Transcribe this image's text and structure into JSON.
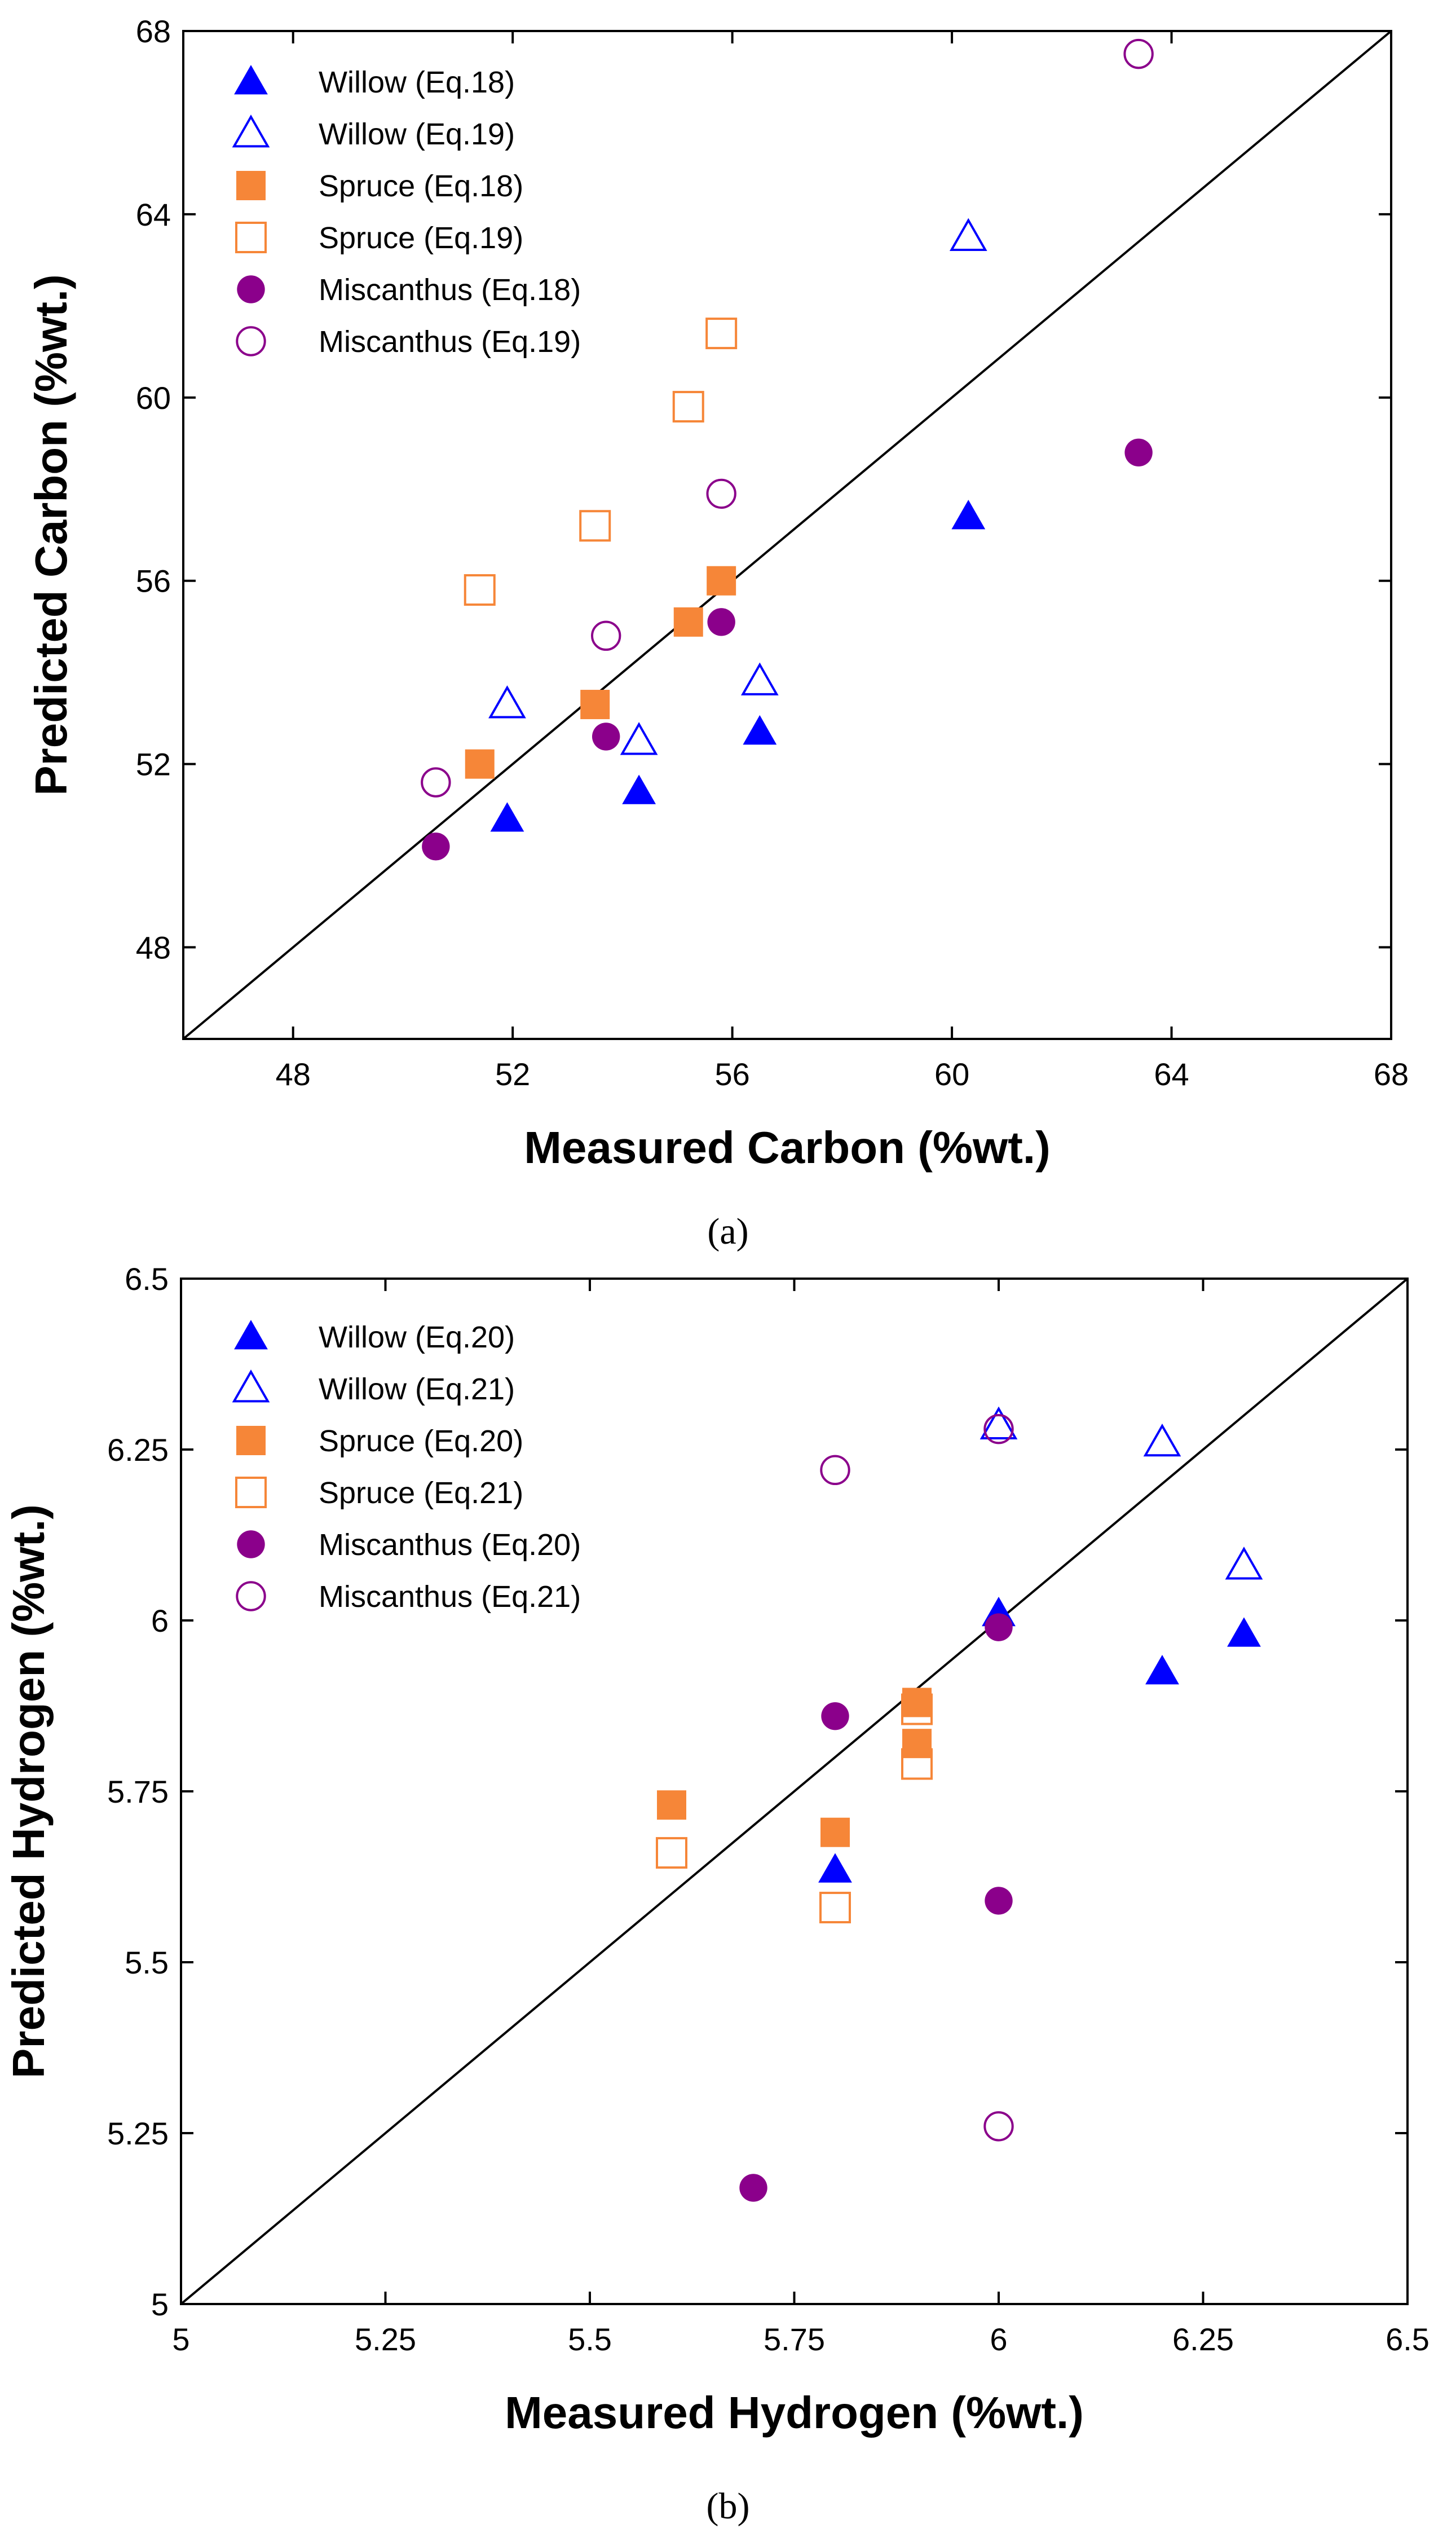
{
  "chart_data": [
    {
      "type": "scatter",
      "panel_label": "(a)",
      "xlabel": "Measured Carbon (%wt.)",
      "ylabel": "Predicted Carbon (%wt.)",
      "xlim": [
        46,
        68
      ],
      "ylim": [
        46,
        68
      ],
      "xticks": [
        48,
        52,
        56,
        60,
        64,
        68
      ],
      "yticks": [
        48,
        52,
        56,
        60,
        64,
        68
      ],
      "xtick_labels": [
        "48",
        "52",
        "56",
        "60",
        "64",
        "68"
      ],
      "ytick_labels": [
        "48",
        "52",
        "56",
        "60",
        "64",
        "68"
      ],
      "diagonal": true,
      "legend_position": "top-left",
      "series": [
        {
          "name": "Willow (Eq.18)",
          "marker": "triangle",
          "filled": true,
          "color": "#0000ff",
          "points": [
            [
              51.9,
              50.8
            ],
            [
              54.3,
              51.4
            ],
            [
              56.5,
              52.7
            ],
            [
              60.3,
              57.4
            ]
          ]
        },
        {
          "name": "Willow (Eq.19)",
          "marker": "triangle",
          "filled": false,
          "color": "#0000ff",
          "points": [
            [
              51.9,
              53.3
            ],
            [
              54.3,
              52.5
            ],
            [
              56.5,
              53.8
            ],
            [
              60.3,
              63.5
            ]
          ]
        },
        {
          "name": "Spruce (Eq.18)",
          "marker": "square",
          "filled": true,
          "color": "#f68638",
          "points": [
            [
              51.4,
              52.0
            ],
            [
              53.5,
              53.3
            ],
            [
              55.2,
              55.1
            ],
            [
              55.8,
              56.0
            ]
          ]
        },
        {
          "name": "Spruce (Eq.19)",
          "marker": "square",
          "filled": false,
          "color": "#f68638",
          "points": [
            [
              51.4,
              55.8
            ],
            [
              53.5,
              57.2
            ],
            [
              55.2,
              59.8
            ],
            [
              55.8,
              61.4
            ]
          ]
        },
        {
          "name": "Miscanthus (Eq.18)",
          "marker": "circle",
          "filled": true,
          "color": "#8b008b",
          "points": [
            [
              50.6,
              50.2
            ],
            [
              53.7,
              52.6
            ],
            [
              55.8,
              55.1
            ],
            [
              63.4,
              58.8
            ]
          ]
        },
        {
          "name": "Miscanthus (Eq.19)",
          "marker": "circle",
          "filled": false,
          "color": "#8b008b",
          "points": [
            [
              50.6,
              51.6
            ],
            [
              53.7,
              54.8
            ],
            [
              55.8,
              57.9
            ],
            [
              63.4,
              67.5
            ]
          ]
        }
      ]
    },
    {
      "type": "scatter",
      "panel_label": "(b)",
      "xlabel": "Measured Hydrogen (%wt.)",
      "ylabel": "Predicted Hydrogen (%wt.)",
      "xlim": [
        5,
        6.5
      ],
      "ylim": [
        5,
        6.5
      ],
      "xticks": [
        5,
        5.25,
        5.5,
        5.75,
        6,
        6.25,
        6.5
      ],
      "yticks": [
        5,
        5.25,
        5.5,
        5.75,
        6,
        6.25,
        6.5
      ],
      "xtick_labels": [
        "5",
        "5.25",
        "5.5",
        "5.75",
        "6",
        "6.25",
        "6.5"
      ],
      "ytick_labels": [
        "5",
        "5.25",
        "5.5",
        "5.75",
        "6",
        "6.25",
        "6.5"
      ],
      "diagonal": true,
      "legend_position": "top-left",
      "series": [
        {
          "name": "Willow (Eq.20)",
          "marker": "triangle",
          "filled": true,
          "color": "#0000ff",
          "points": [
            [
              5.8,
              5.635
            ],
            [
              6.0,
              6.01
            ],
            [
              6.2,
              5.925
            ],
            [
              6.3,
              5.98
            ]
          ]
        },
        {
          "name": "Willow (Eq.21)",
          "marker": "triangle",
          "filled": false,
          "color": "#0000ff",
          "points": [
            [
              6.0,
              6.285
            ],
            [
              6.2,
              6.26
            ],
            [
              6.3,
              6.08
            ]
          ]
        },
        {
          "name": "Spruce (Eq.20)",
          "marker": "square",
          "filled": true,
          "color": "#f68638",
          "points": [
            [
              5.6,
              5.73
            ],
            [
              5.8,
              5.69
            ],
            [
              5.9,
              5.88
            ],
            [
              5.9,
              5.82
            ]
          ]
        },
        {
          "name": "Spruce (Eq.21)",
          "marker": "square",
          "filled": false,
          "color": "#f68638",
          "points": [
            [
              5.6,
              5.66
            ],
            [
              5.8,
              5.58
            ],
            [
              5.9,
              5.87
            ],
            [
              5.9,
              5.79
            ]
          ]
        },
        {
          "name": "Miscanthus (Eq.20)",
          "marker": "circle",
          "filled": true,
          "color": "#8b008b",
          "points": [
            [
              5.7,
              5.17
            ],
            [
              5.8,
              5.86
            ],
            [
              6.0,
              5.99
            ],
            [
              6.0,
              5.59
            ]
          ]
        },
        {
          "name": "Miscanthus (Eq.21)",
          "marker": "circle",
          "filled": false,
          "color": "#8b008b",
          "points": [
            [
              5.8,
              6.22
            ],
            [
              6.0,
              6.28
            ],
            [
              6.0,
              5.26
            ]
          ]
        }
      ]
    }
  ]
}
